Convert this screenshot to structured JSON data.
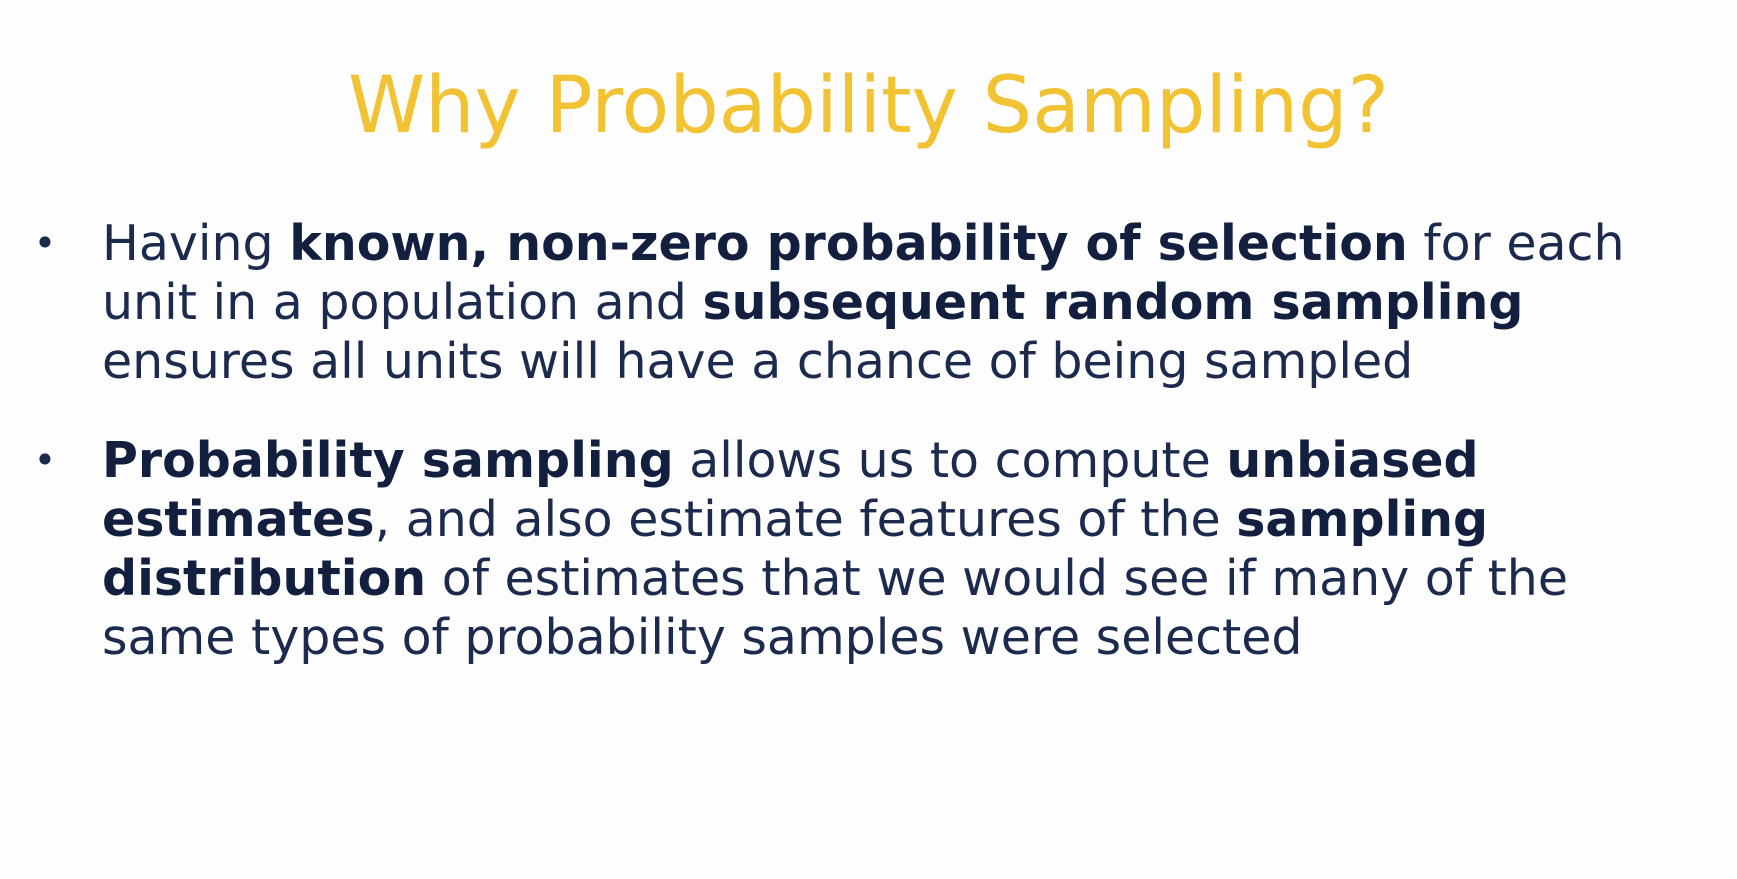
{
  "slide": {
    "title": "Why Probability Sampling?",
    "bullet_symbol": "•",
    "bullets": [
      {
        "segments": [
          "Having ",
          "known, non-zero probability of selection",
          " for each unit in a population and ",
          "subsequent random sampling",
          " ensures all units will have a chance of being sampled"
        ]
      },
      {
        "segments": [
          "Probability sampling",
          " allows us to compute ",
          "unbiased estimates",
          ", and also estimate features of the ",
          "sampling distribution",
          " of estimates that we would see if many of the same types of probability samples were selected"
        ]
      }
    ]
  },
  "colors": {
    "title": "#f1c232",
    "body_text": "#1c2a4d",
    "background": "#fdfdfd"
  }
}
